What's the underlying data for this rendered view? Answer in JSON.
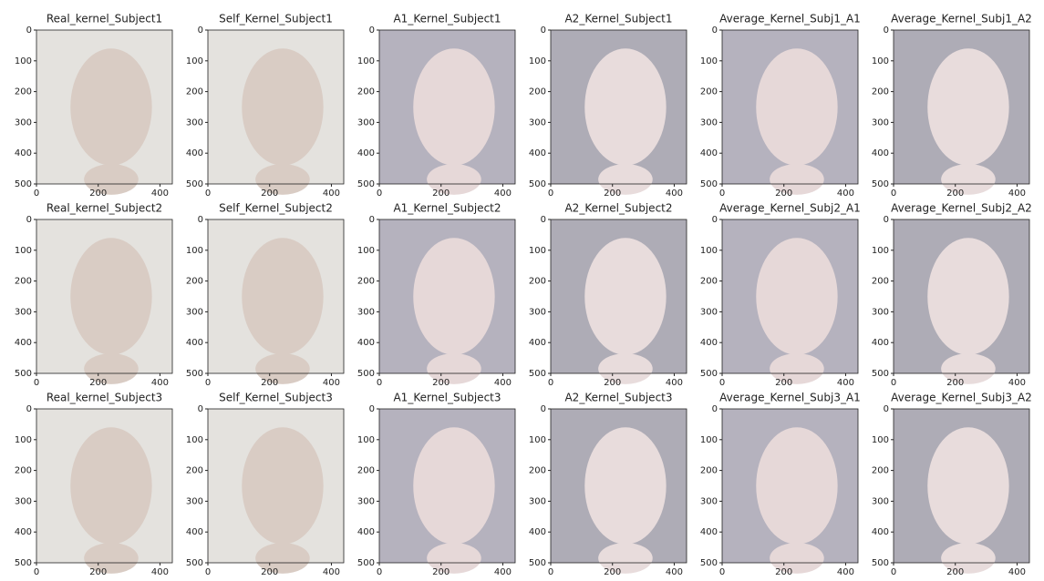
{
  "chart_data": [
    {
      "type": "image",
      "title": "Real_kernel_Subject1",
      "xlim": [
        0,
        440
      ],
      "ylim": [
        500,
        0
      ],
      "xticks": [
        0,
        200,
        400
      ],
      "yticks": [
        0,
        100,
        200,
        300,
        400,
        500
      ]
    },
    {
      "type": "image",
      "title": "Self_Kernel_Subject1",
      "xlim": [
        0,
        440
      ],
      "ylim": [
        500,
        0
      ],
      "xticks": [
        0,
        200,
        400
      ],
      "yticks": [
        0,
        100,
        200,
        300,
        400,
        500
      ]
    },
    {
      "type": "image",
      "title": "A1_Kernel_Subject1",
      "xlim": [
        0,
        440
      ],
      "ylim": [
        500,
        0
      ],
      "xticks": [
        0,
        200,
        400
      ],
      "yticks": [
        0,
        100,
        200,
        300,
        400,
        500
      ]
    },
    {
      "type": "image",
      "title": "A2_Kernel_Subject1",
      "xlim": [
        0,
        440
      ],
      "ylim": [
        500,
        0
      ],
      "xticks": [
        0,
        200,
        400
      ],
      "yticks": [
        0,
        100,
        200,
        300,
        400,
        500
      ]
    },
    {
      "type": "image",
      "title": "Average_Kernel_Subj1_A1",
      "xlim": [
        0,
        440
      ],
      "ylim": [
        500,
        0
      ],
      "xticks": [
        0,
        200,
        400
      ],
      "yticks": [
        0,
        100,
        200,
        300,
        400,
        500
      ]
    },
    {
      "type": "image",
      "title": "Average_Kernel_Subj1_A2",
      "xlim": [
        0,
        440
      ],
      "ylim": [
        500,
        0
      ],
      "xticks": [
        0,
        200,
        400
      ],
      "yticks": [
        0,
        100,
        200,
        300,
        400,
        500
      ]
    },
    {
      "type": "image",
      "title": "Real_kernel_Subject2",
      "xlim": [
        0,
        440
      ],
      "ylim": [
        500,
        0
      ],
      "xticks": [
        0,
        200,
        400
      ],
      "yticks": [
        0,
        100,
        200,
        300,
        400,
        500
      ]
    },
    {
      "type": "image",
      "title": "Self_Kernel_Subject2",
      "xlim": [
        0,
        440
      ],
      "ylim": [
        500,
        0
      ],
      "xticks": [
        0,
        200,
        400
      ],
      "yticks": [
        0,
        100,
        200,
        300,
        400,
        500
      ]
    },
    {
      "type": "image",
      "title": "A1_Kernel_Subject2",
      "xlim": [
        0,
        440
      ],
      "ylim": [
        500,
        0
      ],
      "xticks": [
        0,
        200,
        400
      ],
      "yticks": [
        0,
        100,
        200,
        300,
        400,
        500
      ]
    },
    {
      "type": "image",
      "title": "A2_Kernel_Subject2",
      "xlim": [
        0,
        440
      ],
      "ylim": [
        500,
        0
      ],
      "xticks": [
        0,
        200,
        400
      ],
      "yticks": [
        0,
        100,
        200,
        300,
        400,
        500
      ]
    },
    {
      "type": "image",
      "title": "Average_Kernel_Subj2_A1",
      "xlim": [
        0,
        440
      ],
      "ylim": [
        500,
        0
      ],
      "xticks": [
        0,
        200,
        400
      ],
      "yticks": [
        0,
        100,
        200,
        300,
        400,
        500
      ]
    },
    {
      "type": "image",
      "title": "Average_Kernel_Subj2_A2",
      "xlim": [
        0,
        440
      ],
      "ylim": [
        500,
        0
      ],
      "xticks": [
        0,
        200,
        400
      ],
      "yticks": [
        0,
        100,
        200,
        300,
        400,
        500
      ]
    },
    {
      "type": "image",
      "title": "Real_kernel_Subject3",
      "xlim": [
        0,
        440
      ],
      "ylim": [
        500,
        0
      ],
      "xticks": [
        0,
        200,
        400
      ],
      "yticks": [
        0,
        100,
        200,
        300,
        400,
        500
      ]
    },
    {
      "type": "image",
      "title": "Self_Kernel_Subject3",
      "xlim": [
        0,
        440
      ],
      "ylim": [
        500,
        0
      ],
      "xticks": [
        0,
        200,
        400
      ],
      "yticks": [
        0,
        100,
        200,
        300,
        400,
        500
      ]
    },
    {
      "type": "image",
      "title": "A1_Kernel_Subject3",
      "xlim": [
        0,
        440
      ],
      "ylim": [
        500,
        0
      ],
      "xticks": [
        0,
        200,
        400
      ],
      "yticks": [
        0,
        100,
        200,
        300,
        400,
        500
      ]
    },
    {
      "type": "image",
      "title": "A2_Kernel_Subject3",
      "xlim": [
        0,
        440
      ],
      "ylim": [
        500,
        0
      ],
      "xticks": [
        0,
        200,
        400
      ],
      "yticks": [
        0,
        100,
        200,
        300,
        400,
        500
      ]
    },
    {
      "type": "image",
      "title": "Average_Kernel_Subj3_A1",
      "xlim": [
        0,
        440
      ],
      "ylim": [
        500,
        0
      ],
      "xticks": [
        0,
        200,
        400
      ],
      "yticks": [
        0,
        100,
        200,
        300,
        400,
        500
      ]
    },
    {
      "type": "image",
      "title": "Average_Kernel_Subj3_A2",
      "xlim": [
        0,
        440
      ],
      "ylim": [
        500,
        0
      ],
      "xticks": [
        0,
        200,
        400
      ],
      "yticks": [
        0,
        100,
        200,
        300,
        400,
        500
      ]
    }
  ]
}
